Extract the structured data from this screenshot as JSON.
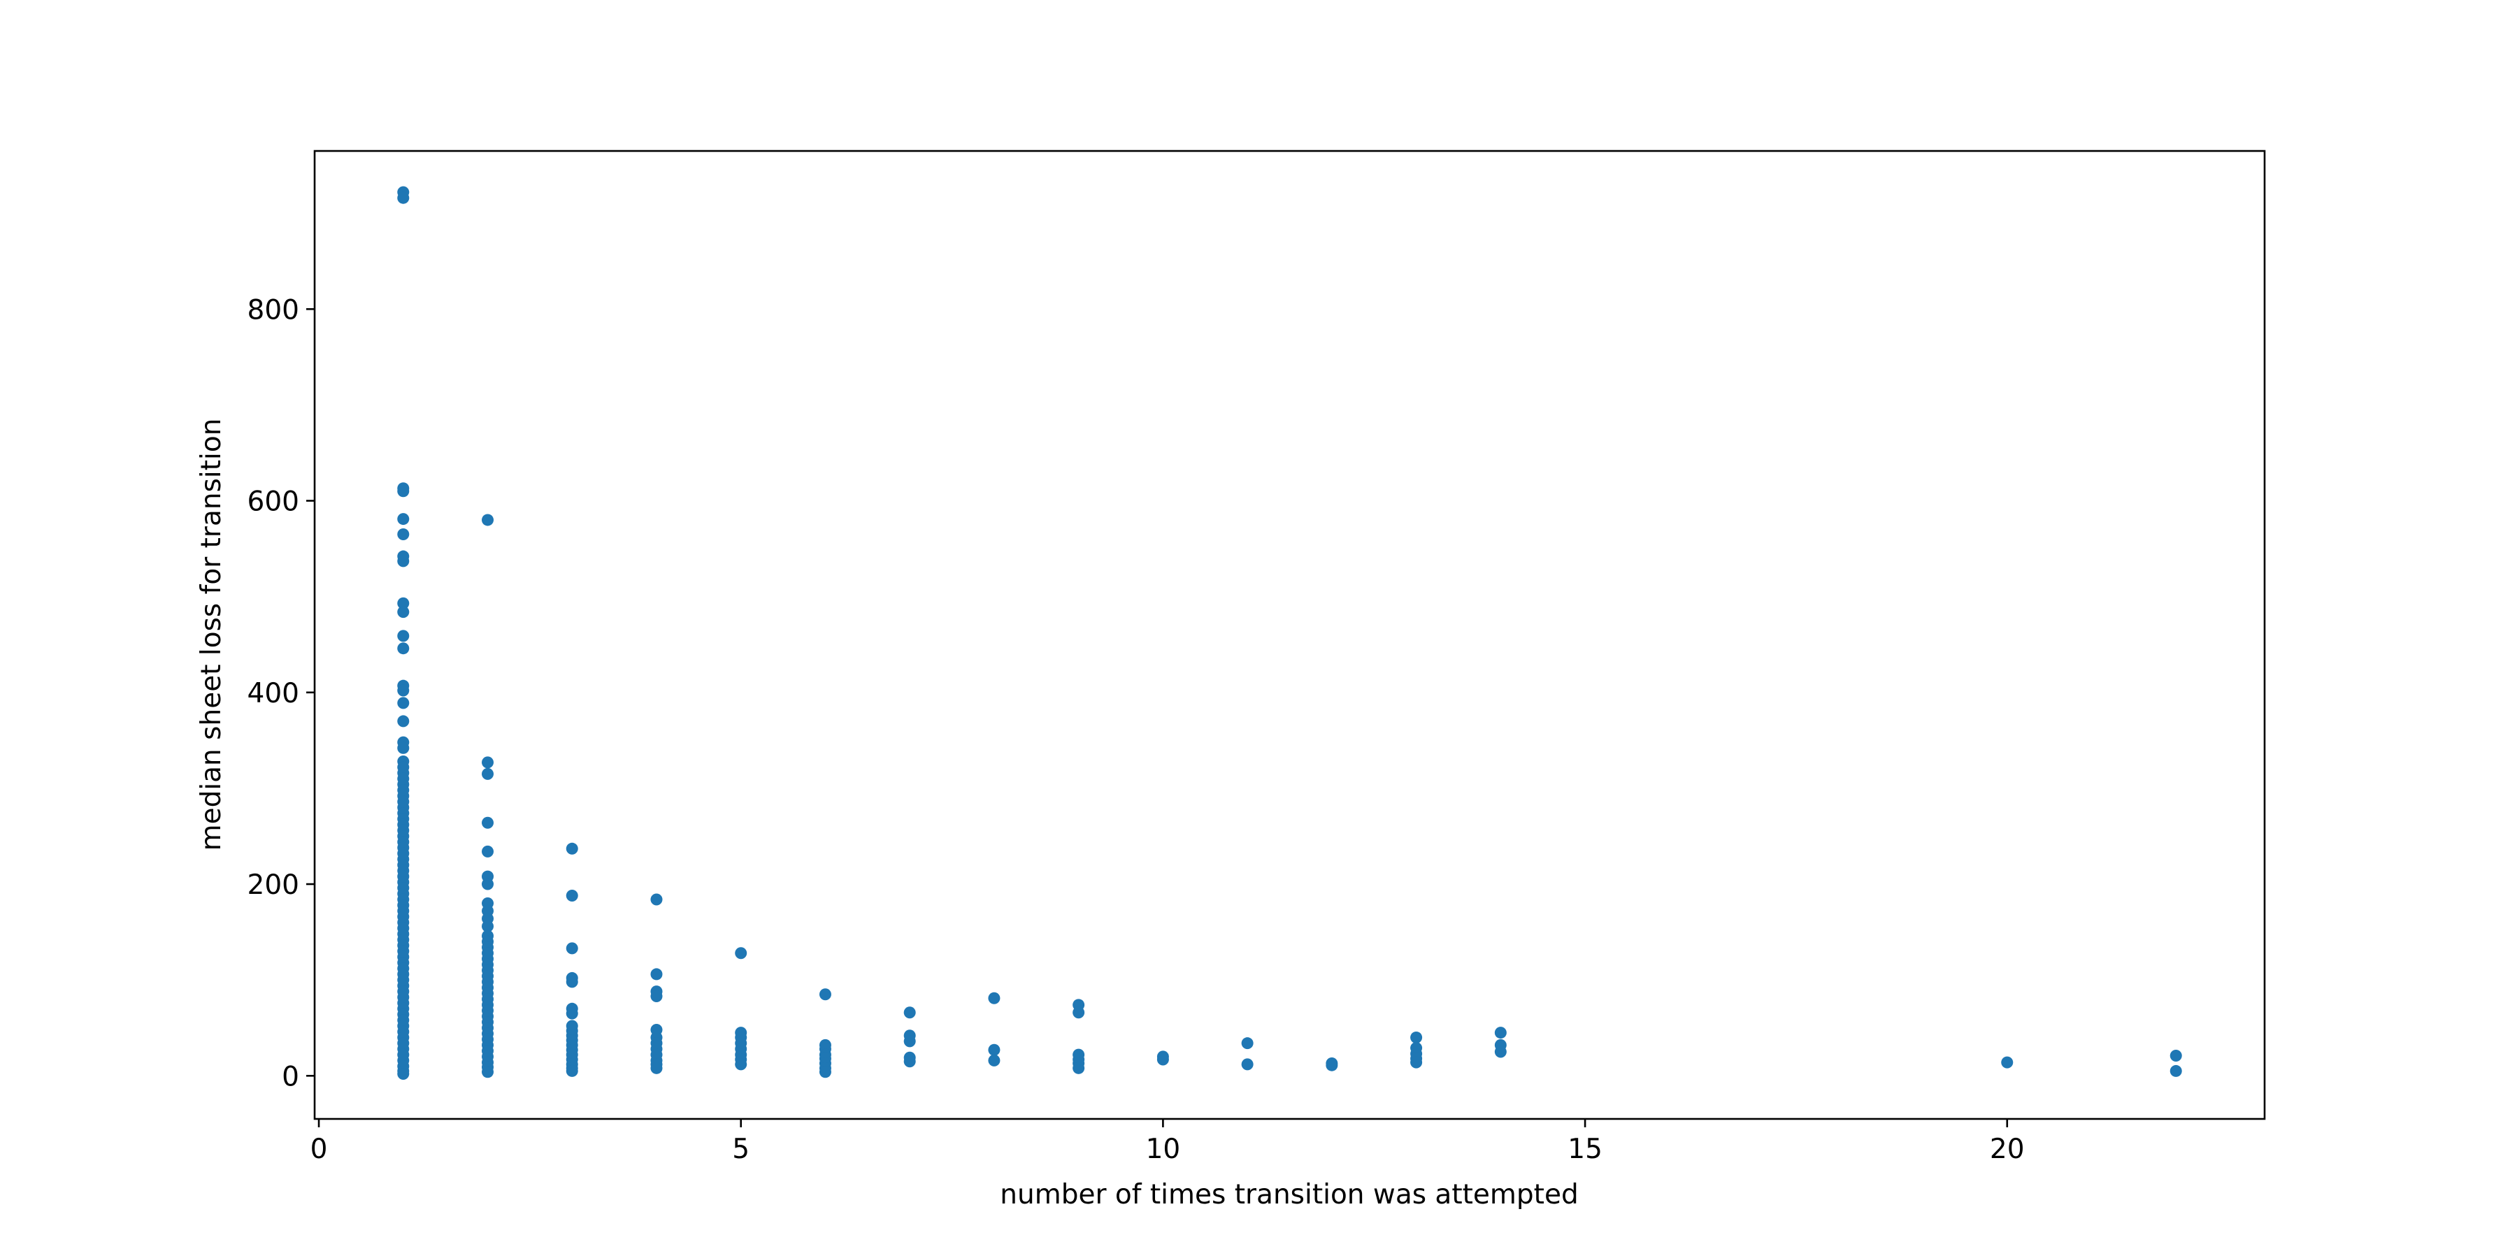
{
  "chart_data": {
    "type": "scatter",
    "title": "",
    "xlabel": "number of times transition was attempted",
    "ylabel": "median sheet loss for transition",
    "xlim": [
      -0.05,
      23.05
    ],
    "ylim": [
      -45,
      965
    ],
    "xticks": [
      0,
      5,
      10,
      15,
      20
    ],
    "yticks": [
      0,
      200,
      400,
      600,
      800
    ],
    "grid": false,
    "legend": "none",
    "marker_color": "#1f77b4",
    "series": [
      {
        "points": [
          [
            1,
            922
          ],
          [
            1,
            916
          ],
          [
            1,
            613
          ],
          [
            1,
            610
          ],
          [
            1,
            581
          ],
          [
            1,
            565
          ],
          [
            1,
            542
          ],
          [
            1,
            537
          ],
          [
            1,
            493
          ],
          [
            1,
            484
          ],
          [
            1,
            459
          ],
          [
            1,
            446
          ],
          [
            1,
            407
          ],
          [
            1,
            402
          ],
          [
            1,
            389
          ],
          [
            1,
            370
          ],
          [
            1,
            348
          ],
          [
            1,
            342
          ],
          [
            1,
            328
          ],
          [
            1,
            322
          ],
          [
            1,
            316
          ],
          [
            1,
            310
          ],
          [
            1,
            304
          ],
          [
            1,
            298
          ],
          [
            1,
            292
          ],
          [
            1,
            286
          ],
          [
            1,
            280
          ],
          [
            1,
            274
          ],
          [
            1,
            268
          ],
          [
            1,
            262
          ],
          [
            1,
            256
          ],
          [
            1,
            250
          ],
          [
            1,
            244
          ],
          [
            1,
            238
          ],
          [
            1,
            232
          ],
          [
            1,
            226
          ],
          [
            1,
            220
          ],
          [
            1,
            214
          ],
          [
            1,
            208
          ],
          [
            1,
            202
          ],
          [
            1,
            196
          ],
          [
            1,
            190
          ],
          [
            1,
            184
          ],
          [
            1,
            178
          ],
          [
            1,
            172
          ],
          [
            1,
            166
          ],
          [
            1,
            160
          ],
          [
            1,
            154
          ],
          [
            1,
            148
          ],
          [
            1,
            142
          ],
          [
            1,
            136
          ],
          [
            1,
            130
          ],
          [
            1,
            124
          ],
          [
            1,
            118
          ],
          [
            1,
            112
          ],
          [
            1,
            106
          ],
          [
            1,
            100
          ],
          [
            1,
            94
          ],
          [
            1,
            88
          ],
          [
            1,
            82
          ],
          [
            1,
            76
          ],
          [
            1,
            70
          ],
          [
            1,
            64
          ],
          [
            1,
            58
          ],
          [
            1,
            52
          ],
          [
            1,
            46
          ],
          [
            1,
            40
          ],
          [
            1,
            34
          ],
          [
            1,
            28
          ],
          [
            1,
            22
          ],
          [
            1,
            16
          ],
          [
            1,
            10
          ],
          [
            1,
            5
          ],
          [
            1,
            2
          ],
          [
            2,
            580
          ],
          [
            2,
            327
          ],
          [
            2,
            315
          ],
          [
            2,
            264
          ],
          [
            2,
            234
          ],
          [
            2,
            208
          ],
          [
            2,
            200
          ],
          [
            2,
            180
          ],
          [
            2,
            172
          ],
          [
            2,
            164
          ],
          [
            2,
            156
          ],
          [
            2,
            146
          ],
          [
            2,
            140
          ],
          [
            2,
            134
          ],
          [
            2,
            128
          ],
          [
            2,
            122
          ],
          [
            2,
            116
          ],
          [
            2,
            110
          ],
          [
            2,
            104
          ],
          [
            2,
            98
          ],
          [
            2,
            92
          ],
          [
            2,
            86
          ],
          [
            2,
            80
          ],
          [
            2,
            74
          ],
          [
            2,
            68
          ],
          [
            2,
            62
          ],
          [
            2,
            56
          ],
          [
            2,
            50
          ],
          [
            2,
            44
          ],
          [
            2,
            38
          ],
          [
            2,
            32
          ],
          [
            2,
            26
          ],
          [
            2,
            20
          ],
          [
            2,
            14
          ],
          [
            2,
            9
          ],
          [
            2,
            4
          ],
          [
            3,
            237
          ],
          [
            3,
            188
          ],
          [
            3,
            133
          ],
          [
            3,
            102
          ],
          [
            3,
            98
          ],
          [
            3,
            70
          ],
          [
            3,
            65
          ],
          [
            3,
            52
          ],
          [
            3,
            47
          ],
          [
            3,
            42
          ],
          [
            3,
            37
          ],
          [
            3,
            32
          ],
          [
            3,
            27
          ],
          [
            3,
            22
          ],
          [
            3,
            17
          ],
          [
            3,
            12
          ],
          [
            3,
            8
          ],
          [
            3,
            5
          ],
          [
            4,
            184
          ],
          [
            4,
            106
          ],
          [
            4,
            88
          ],
          [
            4,
            83
          ],
          [
            4,
            48
          ],
          [
            4,
            40
          ],
          [
            4,
            34
          ],
          [
            4,
            28
          ],
          [
            4,
            22
          ],
          [
            4,
            16
          ],
          [
            4,
            12
          ],
          [
            4,
            8
          ],
          [
            5,
            128
          ],
          [
            5,
            45
          ],
          [
            5,
            40
          ],
          [
            5,
            34
          ],
          [
            5,
            28
          ],
          [
            5,
            22
          ],
          [
            5,
            17
          ],
          [
            5,
            12
          ],
          [
            6,
            85
          ],
          [
            6,
            32
          ],
          [
            6,
            28
          ],
          [
            6,
            22
          ],
          [
            6,
            18
          ],
          [
            6,
            13
          ],
          [
            6,
            8
          ],
          [
            6,
            4
          ],
          [
            7,
            66
          ],
          [
            7,
            42
          ],
          [
            7,
            36
          ],
          [
            7,
            19
          ],
          [
            7,
            15
          ],
          [
            8,
            81
          ],
          [
            8,
            27
          ],
          [
            8,
            16
          ],
          [
            9,
            74
          ],
          [
            9,
            66
          ],
          [
            9,
            22
          ],
          [
            9,
            17
          ],
          [
            9,
            13
          ],
          [
            9,
            8
          ],
          [
            10,
            20
          ],
          [
            10,
            17
          ],
          [
            11,
            34
          ],
          [
            11,
            12
          ],
          [
            12,
            13
          ],
          [
            12,
            11
          ],
          [
            13,
            40
          ],
          [
            13,
            29
          ],
          [
            13,
            23
          ],
          [
            13,
            18
          ],
          [
            13,
            14
          ],
          [
            14,
            45
          ],
          [
            14,
            32
          ],
          [
            14,
            25
          ],
          [
            20,
            14
          ],
          [
            22,
            21
          ],
          [
            22,
            5
          ]
        ]
      }
    ]
  }
}
